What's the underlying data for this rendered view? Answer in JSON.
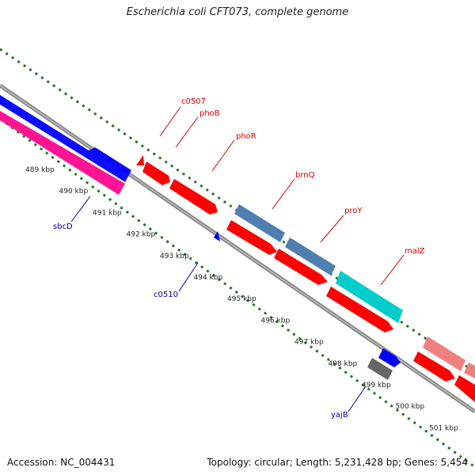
{
  "title": "Escherichia coli CFT073, complete genome",
  "footer": {
    "accession": "Accession: NC_004431",
    "summary": "Topology: circular; Length: 5,231,428 bp; Genes: 5,454"
  },
  "ticks": [
    "489 kbp",
    "490 kbp",
    "491 kbp",
    "492 kbp",
    "493 kbp",
    "494 kbp",
    "495 kbp",
    "496 kbp",
    "497 kbp",
    "498 kbp",
    "499 kbp",
    "500 kbp",
    "501 kbp"
  ],
  "genes": [
    {
      "name": "c0507",
      "color": "#d40000"
    },
    {
      "name": "phoB",
      "color": "#d40000"
    },
    {
      "name": "phoR",
      "color": "#d40000"
    },
    {
      "name": "brnQ",
      "color": "#d40000"
    },
    {
      "name": "proY",
      "color": "#d40000"
    },
    {
      "name": "malZ",
      "color": "#d40000"
    },
    {
      "name": "sbcD",
      "color": "#0000aa"
    },
    {
      "name": "c0510",
      "color": "#0000aa"
    },
    {
      "name": "yajB",
      "color": "#0000aa"
    }
  ],
  "colors": {
    "backbone": "#888888",
    "tick_outer": "#1a7a1a",
    "tick_inner": "#1a7a1a",
    "red": "#ff0000",
    "blue": "#0000ff",
    "pink": "#ff1493",
    "steelblue": "#4f7fb0",
    "cyan": "#00cccc",
    "salmon": "#f08080",
    "gray": "#666666"
  }
}
